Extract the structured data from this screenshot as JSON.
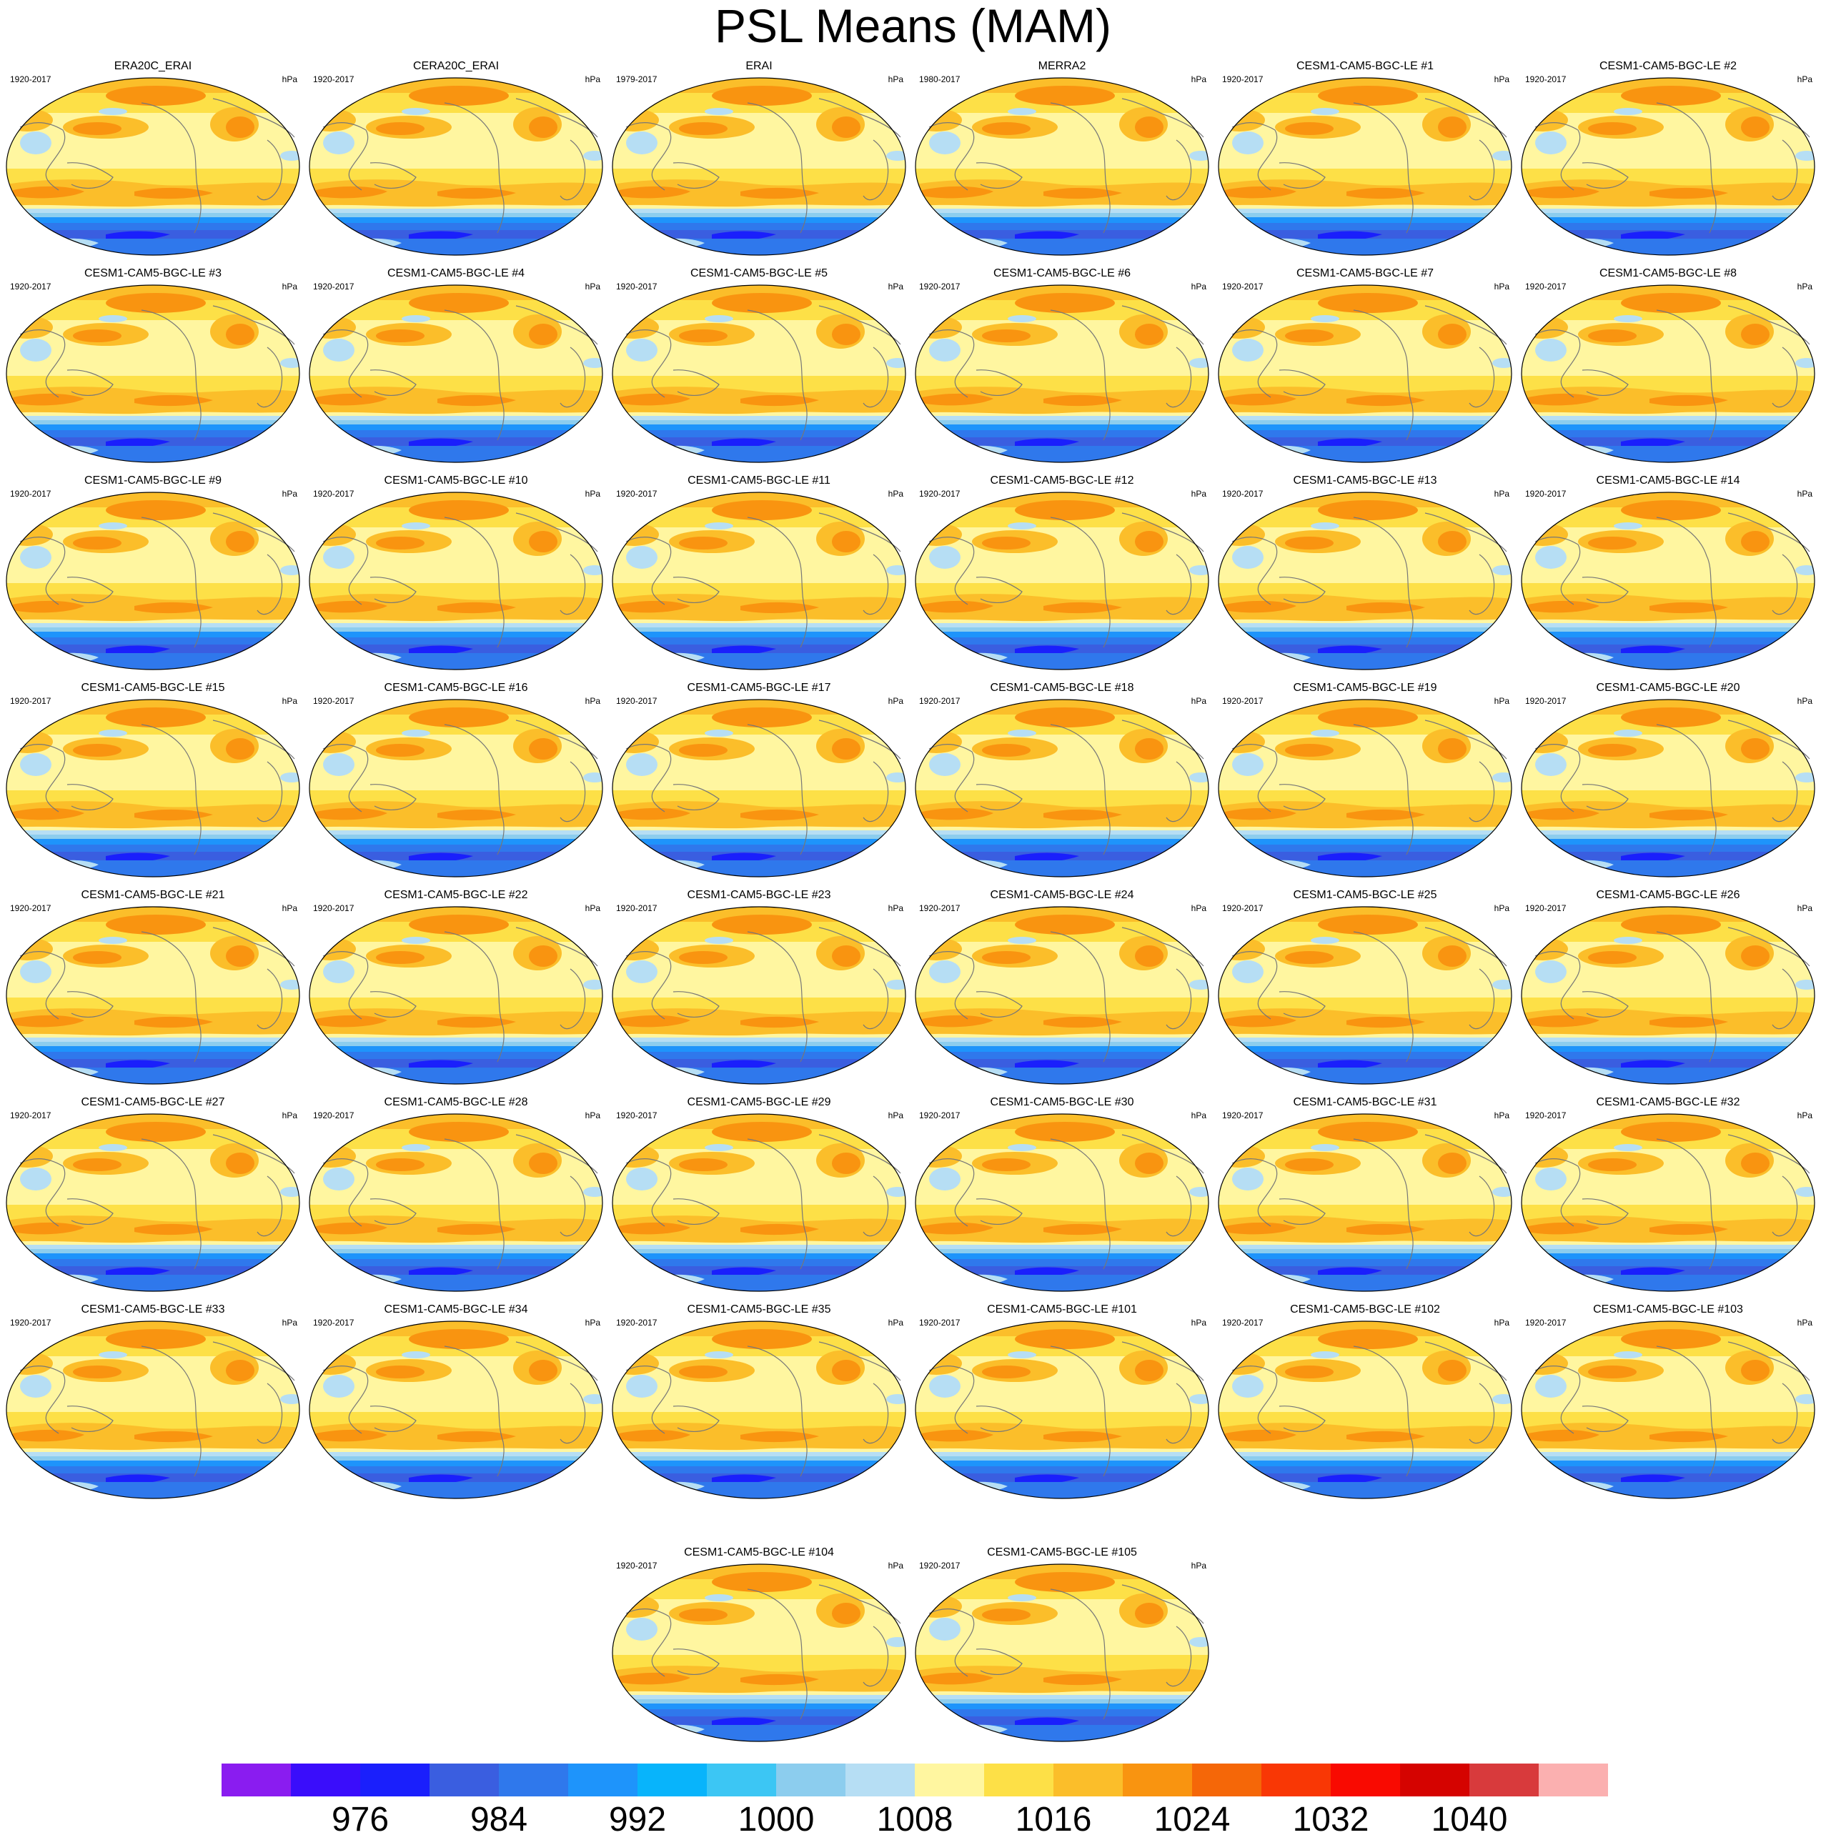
{
  "title": "PSL Means (MAM)",
  "units": "hPa",
  "panels": [
    {
      "name": "ERA20C_ERAI",
      "years": "1920-2017"
    },
    {
      "name": "CERA20C_ERAI",
      "years": "1920-2017"
    },
    {
      "name": "ERAI",
      "years": "1979-2017"
    },
    {
      "name": "MERRA2",
      "years": "1980-2017"
    },
    {
      "name": "CESM1-CAM5-BGC-LE #1",
      "years": "1920-2017"
    },
    {
      "name": "CESM1-CAM5-BGC-LE #2",
      "years": "1920-2017"
    },
    {
      "name": "CESM1-CAM5-BGC-LE #3",
      "years": "1920-2017"
    },
    {
      "name": "CESM1-CAM5-BGC-LE #4",
      "years": "1920-2017"
    },
    {
      "name": "CESM1-CAM5-BGC-LE #5",
      "years": "1920-2017"
    },
    {
      "name": "CESM1-CAM5-BGC-LE #6",
      "years": "1920-2017"
    },
    {
      "name": "CESM1-CAM5-BGC-LE #7",
      "years": "1920-2017"
    },
    {
      "name": "CESM1-CAM5-BGC-LE #8",
      "years": "1920-2017"
    },
    {
      "name": "CESM1-CAM5-BGC-LE #9",
      "years": "1920-2017"
    },
    {
      "name": "CESM1-CAM5-BGC-LE #10",
      "years": "1920-2017"
    },
    {
      "name": "CESM1-CAM5-BGC-LE #11",
      "years": "1920-2017"
    },
    {
      "name": "CESM1-CAM5-BGC-LE #12",
      "years": "1920-2017"
    },
    {
      "name": "CESM1-CAM5-BGC-LE #13",
      "years": "1920-2017"
    },
    {
      "name": "CESM1-CAM5-BGC-LE #14",
      "years": "1920-2017"
    },
    {
      "name": "CESM1-CAM5-BGC-LE #15",
      "years": "1920-2017"
    },
    {
      "name": "CESM1-CAM5-BGC-LE #16",
      "years": "1920-2017"
    },
    {
      "name": "CESM1-CAM5-BGC-LE #17",
      "years": "1920-2017"
    },
    {
      "name": "CESM1-CAM5-BGC-LE #18",
      "years": "1920-2017"
    },
    {
      "name": "CESM1-CAM5-BGC-LE #19",
      "years": "1920-2017"
    },
    {
      "name": "CESM1-CAM5-BGC-LE #20",
      "years": "1920-2017"
    },
    {
      "name": "CESM1-CAM5-BGC-LE #21",
      "years": "1920-2017"
    },
    {
      "name": "CESM1-CAM5-BGC-LE #22",
      "years": "1920-2017"
    },
    {
      "name": "CESM1-CAM5-BGC-LE #23",
      "years": "1920-2017"
    },
    {
      "name": "CESM1-CAM5-BGC-LE #24",
      "years": "1920-2017"
    },
    {
      "name": "CESM1-CAM5-BGC-LE #25",
      "years": "1920-2017"
    },
    {
      "name": "CESM1-CAM5-BGC-LE #26",
      "years": "1920-2017"
    },
    {
      "name": "CESM1-CAM5-BGC-LE #27",
      "years": "1920-2017"
    },
    {
      "name": "CESM1-CAM5-BGC-LE #28",
      "years": "1920-2017"
    },
    {
      "name": "CESM1-CAM5-BGC-LE #29",
      "years": "1920-2017"
    },
    {
      "name": "CESM1-CAM5-BGC-LE #30",
      "years": "1920-2017"
    },
    {
      "name": "CESM1-CAM5-BGC-LE #31",
      "years": "1920-2017"
    },
    {
      "name": "CESM1-CAM5-BGC-LE #32",
      "years": "1920-2017"
    },
    {
      "name": "CESM1-CAM5-BGC-LE #33",
      "years": "1920-2017"
    },
    {
      "name": "CESM1-CAM5-BGC-LE #34",
      "years": "1920-2017"
    },
    {
      "name": "CESM1-CAM5-BGC-LE #35",
      "years": "1920-2017"
    },
    {
      "name": "CESM1-CAM5-BGC-LE #101",
      "years": "1920-2017"
    },
    {
      "name": "CESM1-CAM5-BGC-LE #102",
      "years": "1920-2017"
    },
    {
      "name": "CESM1-CAM5-BGC-LE #103",
      "years": "1920-2017"
    },
    {
      "name": "CESM1-CAM5-BGC-LE #104",
      "years": "1920-2017"
    },
    {
      "name": "CESM1-CAM5-BGC-LE #105",
      "years": "1920-2017"
    }
  ],
  "colorbar": {
    "colors": [
      "#8a1cf0",
      "#3a0dfb",
      "#1a1ffc",
      "#3a5ee0",
      "#2f78ec",
      "#1e94fb",
      "#08b4fb",
      "#3cc6f4",
      "#8ccdee",
      "#b6def4",
      "#fff6a0",
      "#fde047",
      "#fbbe2a",
      "#f99410",
      "#f56708",
      "#f93705",
      "#f90a01",
      "#d50300",
      "#d83a3c",
      "#fbb0b0"
    ],
    "tick_labels": [
      "976",
      "984",
      "992",
      "1000",
      "1008",
      "1016",
      "1024",
      "1032",
      "1040"
    ]
  }
}
